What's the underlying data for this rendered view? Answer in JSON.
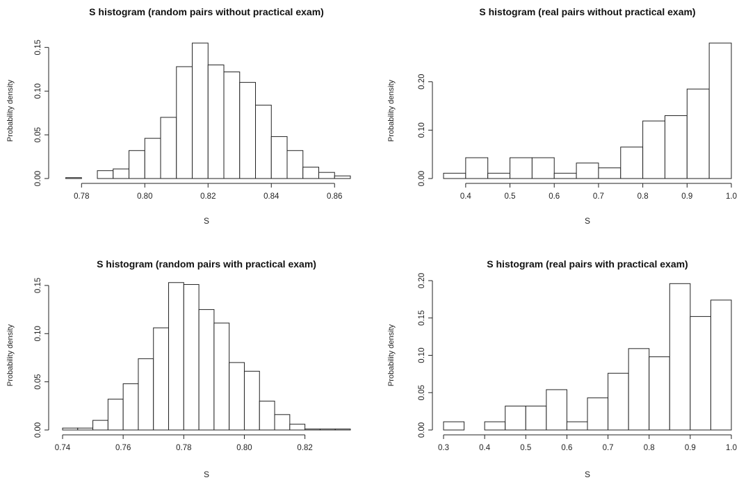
{
  "chart_data": [
    {
      "type": "histogram",
      "title": "S histogram (random pairs without practical exam)",
      "xlabel": "S",
      "ylabel": "Probability density",
      "xlim": [
        0.774,
        0.865
      ],
      "ylim": [
        0,
        0.155
      ],
      "x_ticks": [
        "0.78",
        "0.80",
        "0.82",
        "0.84",
        "0.86"
      ],
      "y_ticks": [
        "0.00",
        "0.05",
        "0.10",
        "0.15"
      ],
      "bin_start": 0.775,
      "bin_width": 0.005,
      "values": [
        0.001,
        0,
        0.009,
        0.011,
        0.032,
        0.046,
        0.07,
        0.128,
        0.155,
        0.13,
        0.122,
        0.11,
        0.084,
        0.048,
        0.032,
        0.013,
        0.007,
        0.003
      ]
    },
    {
      "type": "histogram",
      "title": "S histogram (real pairs without practical exam)",
      "xlabel": "S",
      "ylabel": "Probability density",
      "xlim": [
        0.35,
        1.0
      ],
      "ylim": [
        0,
        0.28
      ],
      "x_ticks": [
        "0.4",
        "0.5",
        "0.6",
        "0.7",
        "0.8",
        "0.9",
        "1.0"
      ],
      "y_ticks": [
        "0.00",
        "0.10",
        "0.20"
      ],
      "bin_start": 0.35,
      "bin_width": 0.05,
      "values": [
        0.011,
        0.043,
        0.011,
        0.043,
        0.043,
        0.011,
        0.032,
        0.022,
        0.065,
        0.119,
        0.13,
        0.185,
        0.28
      ]
    },
    {
      "type": "histogram",
      "title": "S histogram (random pairs with practical exam)",
      "xlabel": "S",
      "ylabel": "Probability density",
      "xlim": [
        0.74,
        0.835
      ],
      "ylim": [
        0,
        0.155
      ],
      "x_ticks": [
        "0.74",
        "0.76",
        "0.78",
        "0.80",
        "0.82"
      ],
      "y_ticks": [
        "0.00",
        "0.05",
        "0.10",
        "0.15"
      ],
      "bin_start": 0.74,
      "bin_width": 0.005,
      "values": [
        0.002,
        0.002,
        0.01,
        0.032,
        0.048,
        0.074,
        0.106,
        0.153,
        0.151,
        0.125,
        0.111,
        0.07,
        0.061,
        0.03,
        0.016,
        0.006,
        0.001,
        0.001,
        0.001
      ]
    },
    {
      "type": "histogram",
      "title": "S histogram (real pairs with practical exam)",
      "xlabel": "S",
      "ylabel": "Probability density",
      "xlim": [
        0.3,
        1.0
      ],
      "ylim": [
        0,
        0.2
      ],
      "x_ticks": [
        "0.3",
        "0.4",
        "0.5",
        "0.6",
        "0.7",
        "0.8",
        "0.9",
        "1.0"
      ],
      "y_ticks": [
        "0.00",
        "0.05",
        "0.10",
        "0.15",
        "0.20"
      ],
      "bin_start": 0.3,
      "bin_width": 0.05,
      "values": [
        0.011,
        0,
        0.011,
        0.032,
        0.032,
        0.054,
        0.011,
        0.043,
        0.076,
        0.109,
        0.098,
        0.196,
        0.152,
        0.174
      ]
    }
  ]
}
